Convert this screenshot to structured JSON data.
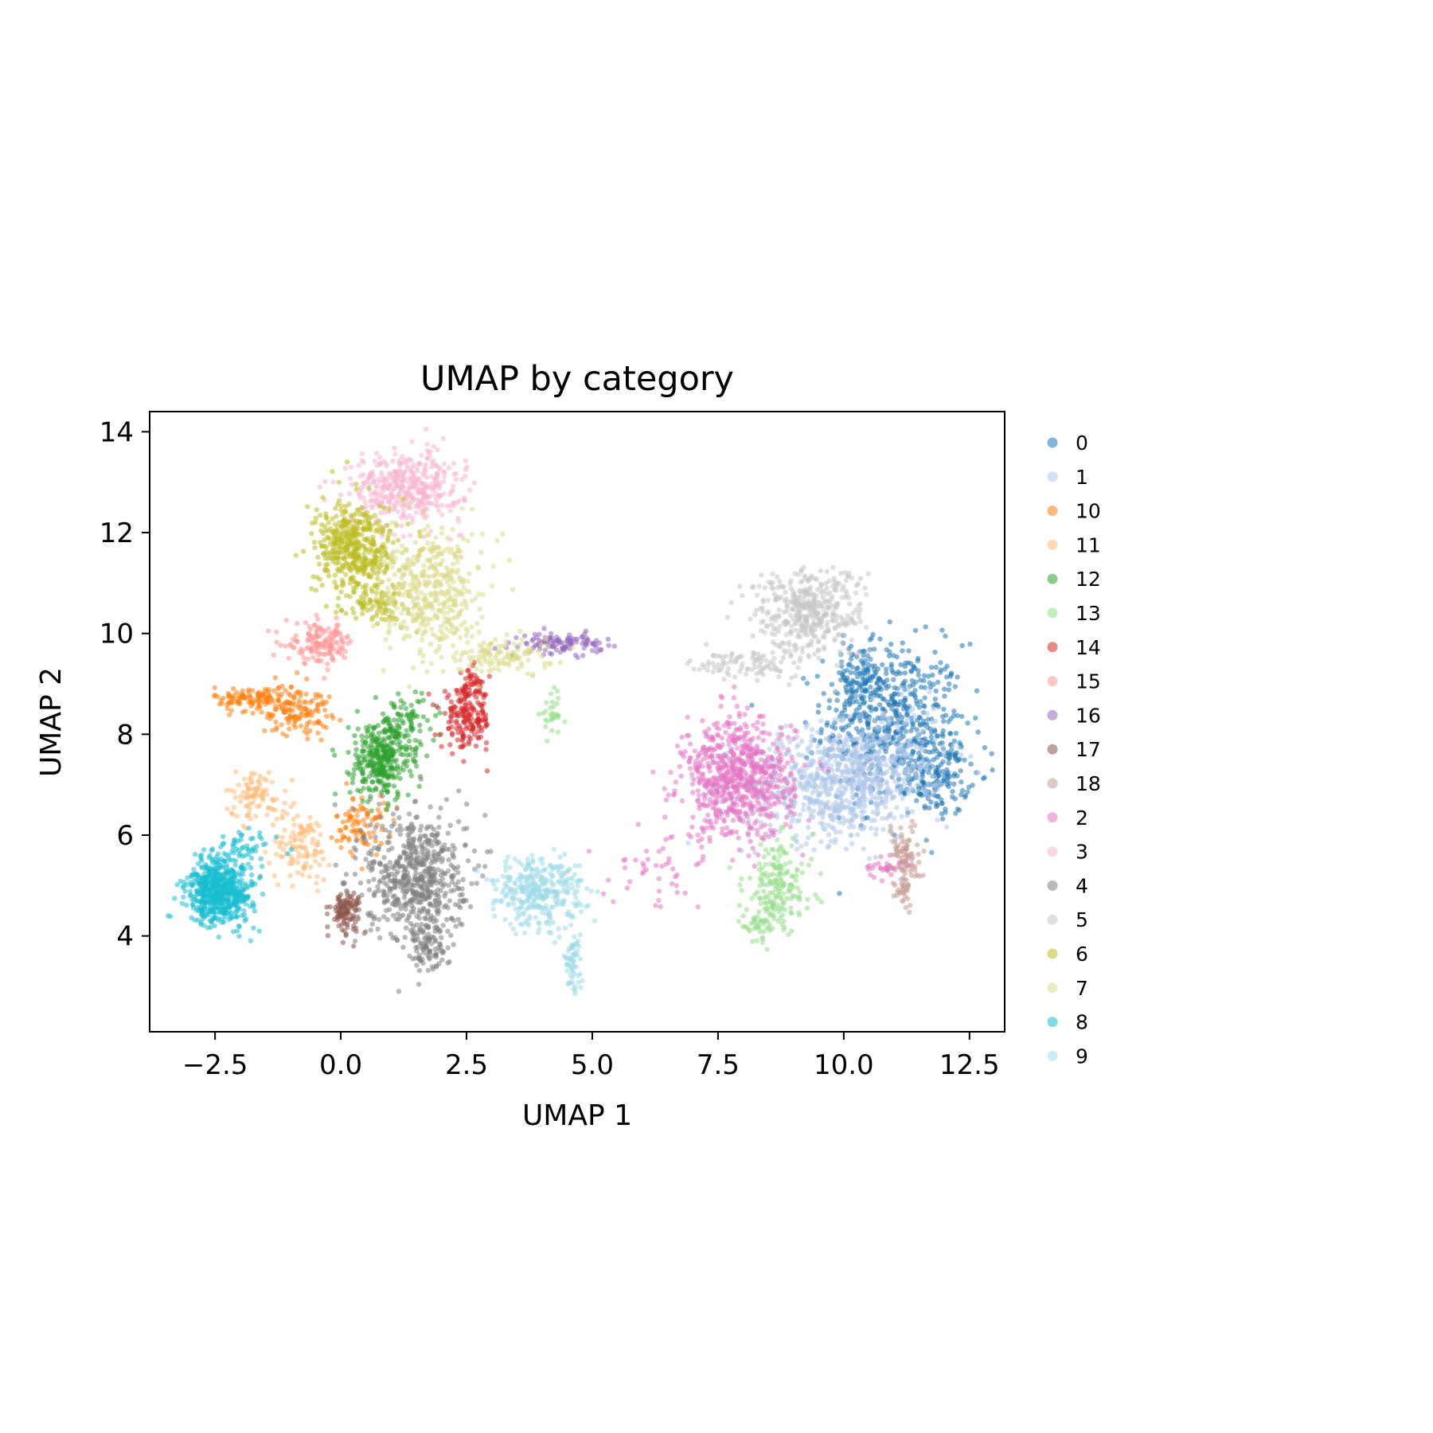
{
  "chart_data": {
    "type": "scatter",
    "title": "UMAP by category",
    "xlabel": "UMAP 1",
    "ylabel": "UMAP 2",
    "xlim": [
      -3.8,
      13.2
    ],
    "ylim": [
      2.1,
      14.4
    ],
    "xticks": [
      -2.5,
      0.0,
      2.5,
      5.0,
      7.5,
      10.0,
      12.5
    ],
    "xtick_labels": [
      "−2.5",
      "0.0",
      "2.5",
      "5.0",
      "7.5",
      "10.0",
      "12.5"
    ],
    "yticks": [
      4,
      6,
      8,
      10,
      12,
      14
    ],
    "ytick_labels": [
      "4",
      "6",
      "8",
      "10",
      "12",
      "14"
    ],
    "grid": false,
    "legend_position": "outside-right",
    "series": [
      {
        "name": "0",
        "color": "#1f77b4",
        "clusters": [
          {
            "x": 11.0,
            "y": 8.2,
            "sx": 0.7,
            "sy": 0.8,
            "n": 520
          },
          {
            "x": 11.9,
            "y": 7.2,
            "sx": 0.3,
            "sy": 0.4,
            "n": 150
          },
          {
            "x": 10.3,
            "y": 9.0,
            "sx": 0.3,
            "sy": 0.4,
            "n": 120
          }
        ]
      },
      {
        "name": "1",
        "color": "#aec7e8",
        "clusters": [
          {
            "x": 9.8,
            "y": 7.0,
            "sx": 0.9,
            "sy": 0.55,
            "n": 650
          },
          {
            "x": 10.8,
            "y": 7.6,
            "sx": 0.6,
            "sy": 0.5,
            "n": 220
          }
        ]
      },
      {
        "name": "10",
        "color": "#ff7f0e",
        "clusters": [
          {
            "x": -0.9,
            "y": 8.5,
            "sx": 0.35,
            "sy": 0.25,
            "n": 140
          },
          {
            "x": -1.8,
            "y": 8.7,
            "sx": 0.35,
            "sy": 0.12,
            "n": 100
          },
          {
            "x": 0.4,
            "y": 6.2,
            "sx": 0.25,
            "sy": 0.3,
            "n": 90
          }
        ]
      },
      {
        "name": "11",
        "color": "#ffbb78",
        "clusters": [
          {
            "x": -1.7,
            "y": 6.8,
            "sx": 0.3,
            "sy": 0.25,
            "n": 90
          },
          {
            "x": -0.8,
            "y": 5.8,
            "sx": 0.3,
            "sy": 0.35,
            "n": 110
          }
        ]
      },
      {
        "name": "12",
        "color": "#2ca02c",
        "clusters": [
          {
            "x": 0.8,
            "y": 7.5,
            "sx": 0.3,
            "sy": 0.4,
            "n": 320
          },
          {
            "x": 1.3,
            "y": 8.2,
            "sx": 0.3,
            "sy": 0.3,
            "n": 80
          }
        ]
      },
      {
        "name": "13",
        "color": "#98df8a",
        "clusters": [
          {
            "x": 8.7,
            "y": 5.0,
            "sx": 0.35,
            "sy": 0.45,
            "n": 180
          },
          {
            "x": 8.3,
            "y": 4.2,
            "sx": 0.2,
            "sy": 0.15,
            "n": 40
          },
          {
            "x": 4.2,
            "y": 8.4,
            "sx": 0.12,
            "sy": 0.2,
            "n": 30
          }
        ]
      },
      {
        "name": "14",
        "color": "#d62728",
        "clusters": [
          {
            "x": 2.5,
            "y": 8.3,
            "sx": 0.25,
            "sy": 0.3,
            "n": 170
          },
          {
            "x": 2.6,
            "y": 9.0,
            "sx": 0.12,
            "sy": 0.2,
            "n": 40
          }
        ]
      },
      {
        "name": "15",
        "color": "#ff9896",
        "clusters": [
          {
            "x": -0.4,
            "y": 9.8,
            "sx": 0.35,
            "sy": 0.2,
            "n": 150
          }
        ]
      },
      {
        "name": "16",
        "color": "#9467bd",
        "clusters": [
          {
            "x": 4.4,
            "y": 9.8,
            "sx": 0.4,
            "sy": 0.1,
            "n": 110
          }
        ]
      },
      {
        "name": "17",
        "color": "#8c564b",
        "clusters": [
          {
            "x": 0.1,
            "y": 4.5,
            "sx": 0.15,
            "sy": 0.2,
            "n": 110
          }
        ]
      },
      {
        "name": "18",
        "color": "#c49c94",
        "clusters": [
          {
            "x": 11.2,
            "y": 5.6,
            "sx": 0.15,
            "sy": 0.35,
            "n": 90
          },
          {
            "x": 11.2,
            "y": 4.9,
            "sx": 0.1,
            "sy": 0.15,
            "n": 25
          }
        ]
      },
      {
        "name": "2",
        "color": "#e377c2",
        "clusters": [
          {
            "x": 7.9,
            "y": 7.1,
            "sx": 0.55,
            "sy": 0.6,
            "n": 720
          },
          {
            "x": 6.2,
            "y": 5.2,
            "sx": 0.5,
            "sy": 0.3,
            "n": 40
          },
          {
            "x": 10.8,
            "y": 5.4,
            "sx": 0.2,
            "sy": 0.12,
            "n": 25
          }
        ]
      },
      {
        "name": "3",
        "color": "#f7b6d2",
        "clusters": [
          {
            "x": 1.3,
            "y": 12.9,
            "sx": 0.55,
            "sy": 0.35,
            "n": 420
          }
        ]
      },
      {
        "name": "4",
        "color": "#7f7f7f",
        "clusters": [
          {
            "x": 1.5,
            "y": 5.2,
            "sx": 0.5,
            "sy": 0.65,
            "n": 600
          },
          {
            "x": 1.7,
            "y": 3.8,
            "sx": 0.2,
            "sy": 0.25,
            "n": 90
          }
        ]
      },
      {
        "name": "5",
        "color": "#c7c7c7",
        "clusters": [
          {
            "x": 9.3,
            "y": 10.4,
            "sx": 0.55,
            "sy": 0.45,
            "n": 420
          },
          {
            "x": 8.0,
            "y": 9.4,
            "sx": 0.5,
            "sy": 0.15,
            "n": 90
          }
        ]
      },
      {
        "name": "6",
        "color": "#bcbd22",
        "clusters": [
          {
            "x": 0.3,
            "y": 11.7,
            "sx": 0.4,
            "sy": 0.45,
            "n": 460
          },
          {
            "x": 0.7,
            "y": 10.6,
            "sx": 0.3,
            "sy": 0.2,
            "n": 90
          }
        ]
      },
      {
        "name": "7",
        "color": "#dbdb8d",
        "clusters": [
          {
            "x": 1.8,
            "y": 10.8,
            "sx": 0.5,
            "sy": 0.6,
            "n": 420
          },
          {
            "x": 3.2,
            "y": 9.6,
            "sx": 0.5,
            "sy": 0.2,
            "n": 120
          }
        ]
      },
      {
        "name": "8",
        "color": "#17becf",
        "clusters": [
          {
            "x": -2.4,
            "y": 4.9,
            "sx": 0.32,
            "sy": 0.32,
            "n": 620
          },
          {
            "x": -1.9,
            "y": 5.7,
            "sx": 0.3,
            "sy": 0.2,
            "n": 50
          }
        ]
      },
      {
        "name": "9",
        "color": "#9edae5",
        "clusters": [
          {
            "x": 3.9,
            "y": 4.9,
            "sx": 0.45,
            "sy": 0.35,
            "n": 320
          },
          {
            "x": 4.6,
            "y": 3.6,
            "sx": 0.1,
            "sy": 0.4,
            "n": 70
          }
        ]
      }
    ]
  }
}
